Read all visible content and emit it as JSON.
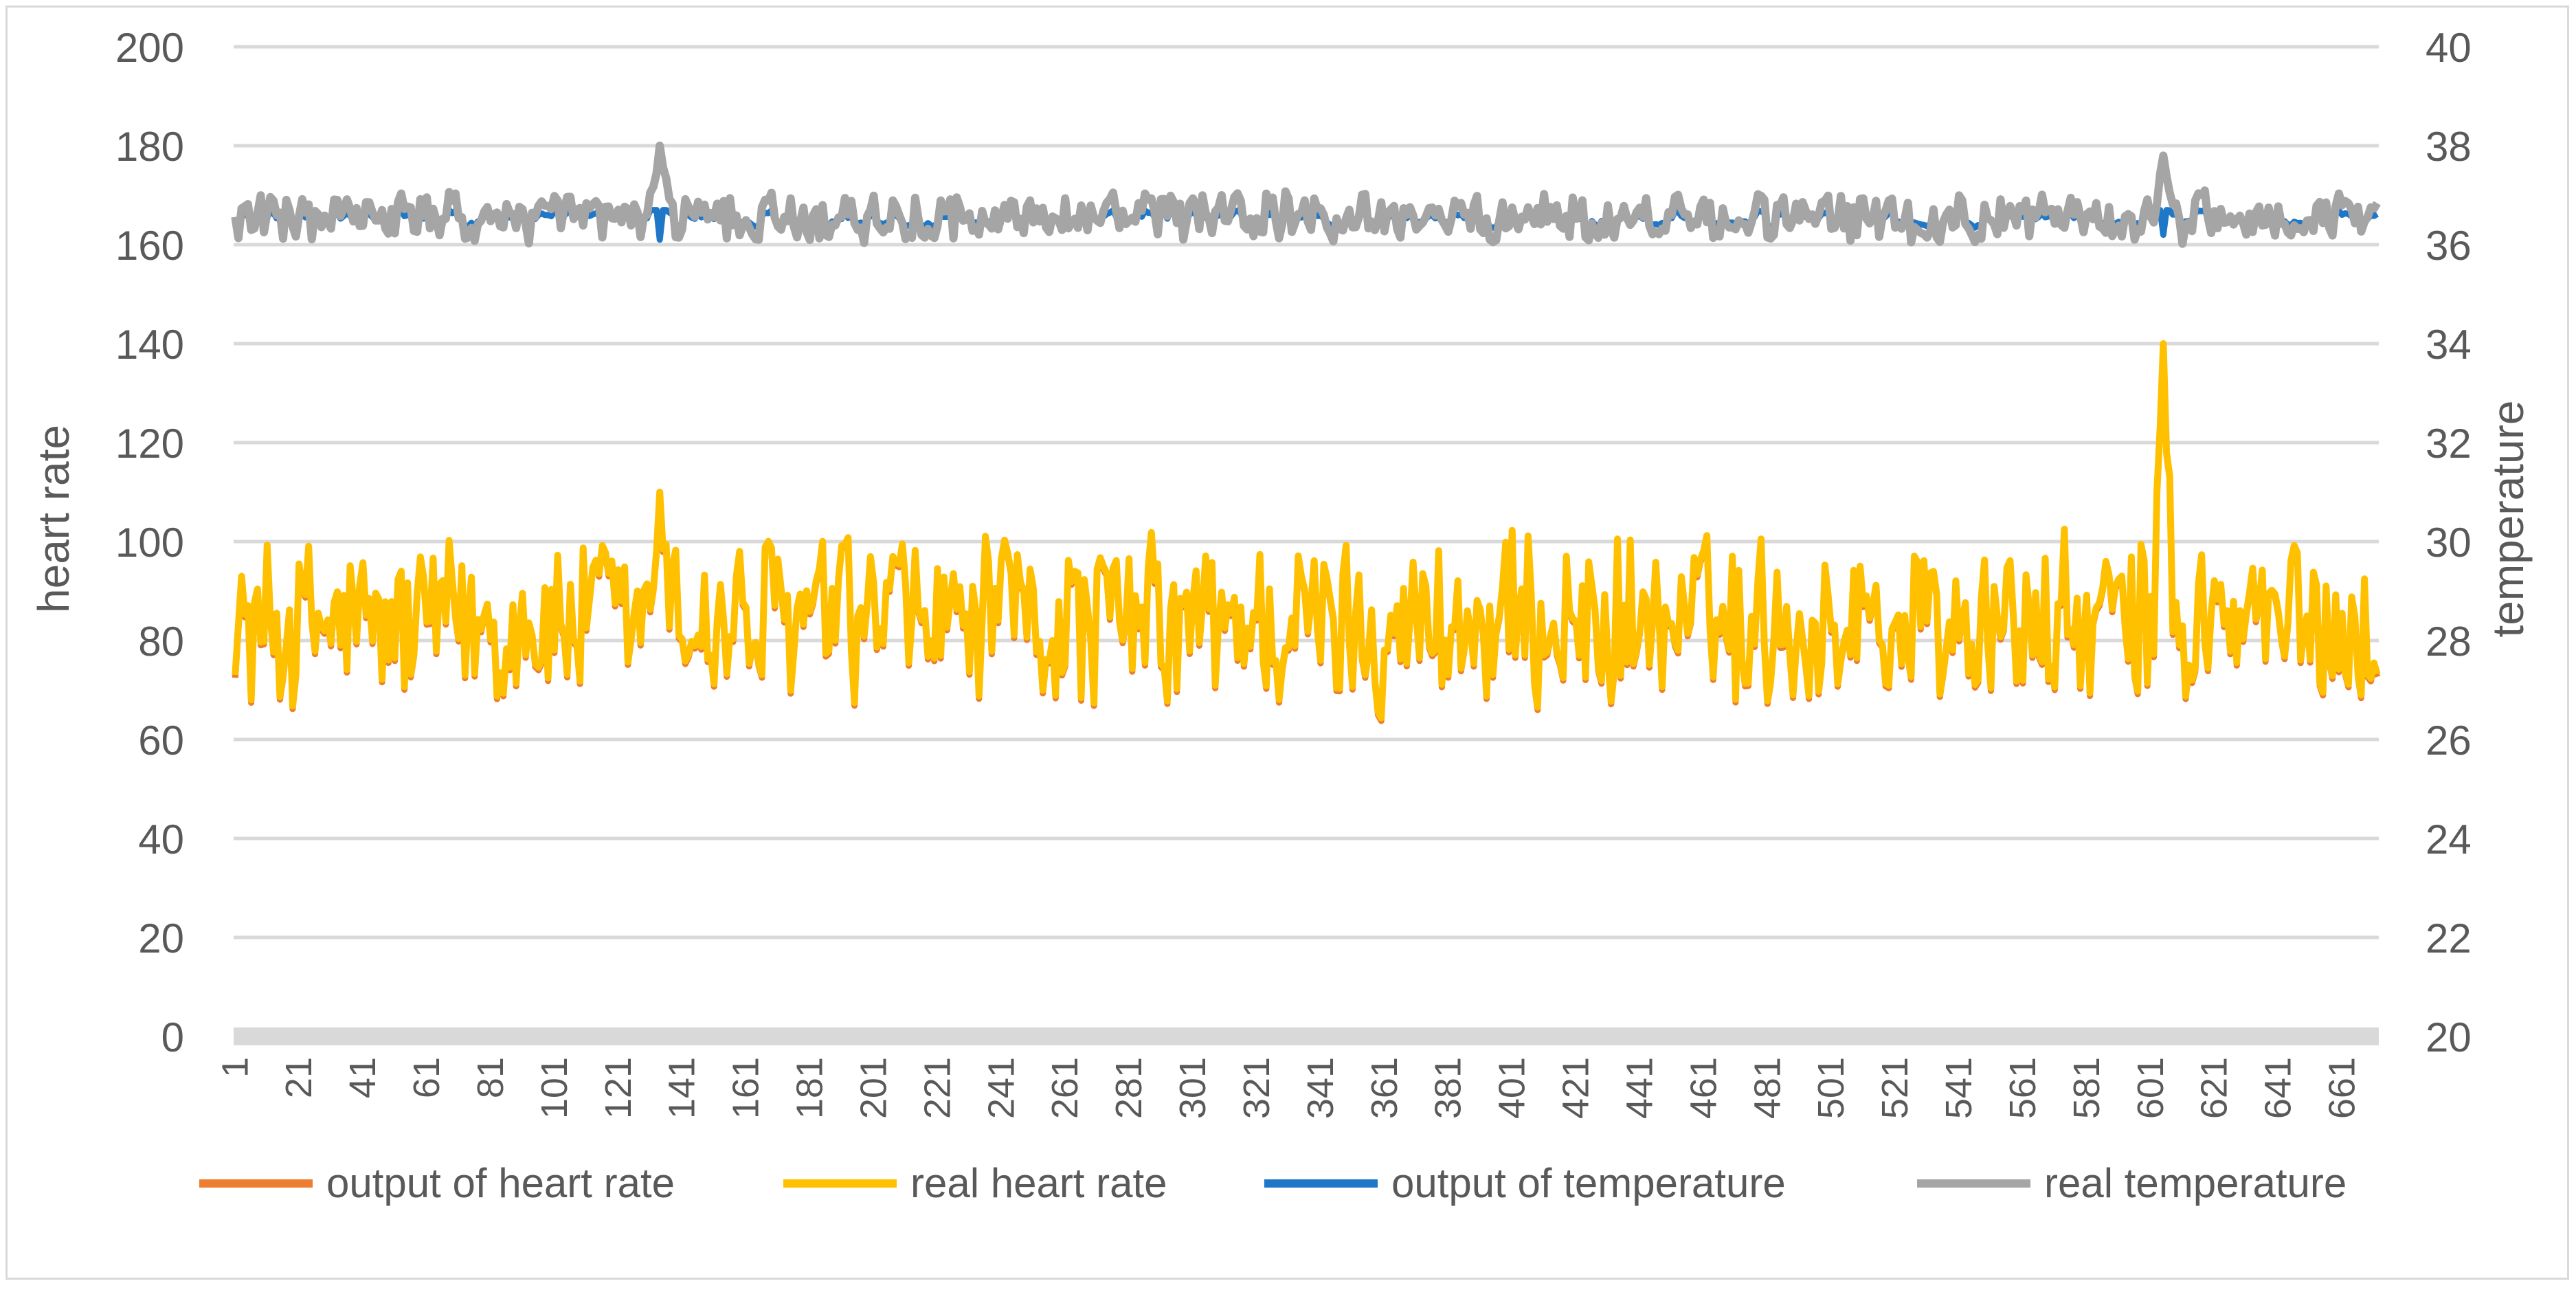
{
  "chart_data": {
    "type": "line",
    "title": "",
    "xlabel": "",
    "ylabel": "heart rate",
    "y2label": "temperature",
    "ylim": [
      0,
      200
    ],
    "y2lim": [
      20,
      40
    ],
    "yticks": [
      "0",
      "20",
      "40",
      "60",
      "80",
      "100",
      "120",
      "140",
      "160",
      "180",
      "200"
    ],
    "y2ticks": [
      "20",
      "22",
      "24",
      "26",
      "28",
      "30",
      "32",
      "34",
      "36",
      "38",
      "40"
    ],
    "xticks": [
      "1",
      "21",
      "41",
      "61",
      "81",
      "101",
      "121",
      "141",
      "161",
      "181",
      "201",
      "221",
      "241",
      "261",
      "281",
      "301",
      "321",
      "341",
      "361",
      "381",
      "401",
      "421",
      "441",
      "461",
      "481",
      "501",
      "521",
      "541",
      "561",
      "581",
      "601",
      "621",
      "641",
      "661"
    ],
    "n_points": 672,
    "grid": true,
    "legend_position": "bottom",
    "series": [
      {
        "name": "output of heart rate",
        "axis": "left",
        "color": "#ed7d31",
        "range": [
          65,
          103
        ],
        "spike_at": [
          134,
          605
        ],
        "spike_values": [
          109,
          139
        ],
        "offset": 0.6
      },
      {
        "name": "real heart rate",
        "axis": "left",
        "color": "#ffc000",
        "range": [
          64,
          103
        ],
        "spike_at": [
          134,
          605
        ],
        "spike_values": [
          110,
          140
        ],
        "offset": 0
      },
      {
        "name": "output of temperature",
        "axis": "right",
        "color": "#1f77c8",
        "range": [
          36.3,
          36.7
        ],
        "spike_at": [
          134,
          605
        ],
        "spike_values": [
          36.1,
          36.2
        ],
        "offset": 0
      },
      {
        "name": "real temperature",
        "axis": "right",
        "color": "#a5a5a5",
        "range": [
          36.0,
          37.1
        ],
        "spike_at": [
          134,
          605
        ],
        "spike_values": [
          38.0,
          37.8
        ],
        "offset": 0
      }
    ]
  },
  "legend": {
    "items": [
      {
        "label": "output of heart rate",
        "color": "#ed7d31"
      },
      {
        "label": "real heart rate",
        "color": "#ffc000"
      },
      {
        "label": "output of temperature",
        "color": "#1f77c8"
      },
      {
        "label": "real temperature",
        "color": "#a5a5a5"
      }
    ]
  }
}
